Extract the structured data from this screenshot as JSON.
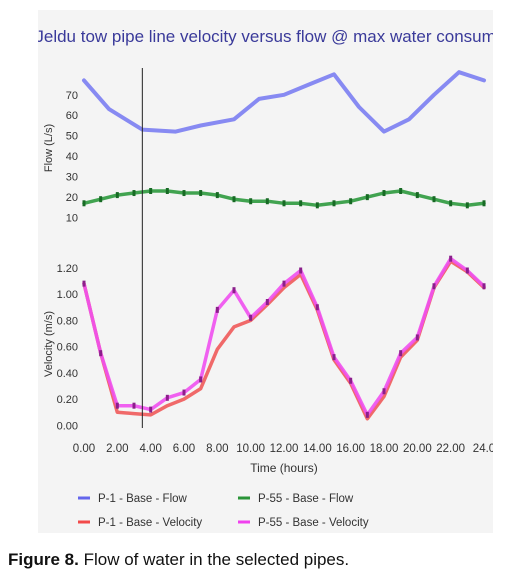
{
  "caption": {
    "label": "Figure 8.",
    "text": " Flow of water in the selected pipes."
  },
  "chart_data": {
    "title": "Jeldu tow pipe line velocity versus flow @ max water consumption",
    "xlabel": "Time (hours)",
    "x_ticks": [
      "0.00",
      "2.00",
      "4.00",
      "6.00",
      "8.00",
      "10.00",
      "12.00",
      "14.00",
      "16.00",
      "18.00",
      "20.00",
      "22.00",
      "24.0"
    ],
    "xlim": [
      0,
      24
    ],
    "cursor_x": 3.5,
    "grid": false,
    "legend_position": "bottom",
    "panels": [
      {
        "type": "line",
        "ylabel": "Flow (L/s)",
        "y_ticks": [
          "70",
          "60",
          "50",
          "40",
          "30",
          "20",
          "10"
        ],
        "ylim": [
          2,
          86
        ],
        "series": [
          {
            "name": "P-1 - Base - Flow",
            "color": "#7b7ef2",
            "x": [
              0,
              1.5,
              3.5,
              5.5,
              7,
              9,
              10.5,
              12,
              13.5,
              15,
              16.5,
              18,
              19.5,
              21,
              22.5,
              24
            ],
            "y": [
              77,
              63,
              53,
              52,
              55,
              58,
              68,
              70,
              75,
              80,
              64,
              52,
              58,
              70,
              81,
              77
            ]
          },
          {
            "name": "P-55 - Base - Flow",
            "color": "#2e9a3e",
            "markers": true,
            "x": [
              0,
              1,
              2,
              3,
              4,
              5,
              6,
              7,
              8,
              9,
              10,
              11,
              12,
              13,
              14,
              15,
              16,
              17,
              18,
              19,
              20,
              21,
              22,
              23,
              24
            ],
            "y": [
              17,
              19,
              21,
              22,
              23,
              23,
              22,
              22,
              21,
              19,
              18,
              18,
              17,
              17,
              16,
              17,
              18,
              20,
              22,
              23,
              21,
              19,
              17,
              16,
              17
            ]
          }
        ]
      },
      {
        "type": "line",
        "ylabel": "Velocity (m/s)",
        "y_ticks": [
          "1.20",
          "1.00",
          "0.80",
          "0.60",
          "0.40",
          "0.20",
          "0.00"
        ],
        "ylim": [
          -0.02,
          1.26
        ],
        "series": [
          {
            "name": "P-1 - Base - Velocity",
            "color": "#f05a5a",
            "x": [
              0,
              1,
              2,
              3,
              4,
              5,
              6,
              7,
              8,
              9,
              10,
              11,
              12,
              13,
              14,
              15,
              16,
              17,
              18,
              19,
              20,
              21,
              22,
              23,
              24
            ],
            "y": [
              1.08,
              0.55,
              0.1,
              0.09,
              0.08,
              0.15,
              0.2,
              0.28,
              0.58,
              0.75,
              0.8,
              0.92,
              1.05,
              1.15,
              0.88,
              0.5,
              0.32,
              0.05,
              0.22,
              0.52,
              0.65,
              1.05,
              1.25,
              1.17,
              1.05
            ]
          },
          {
            "name": "P-55 - Base - Velocity",
            "color": "#f050f0",
            "markers": true,
            "x": [
              0,
              1,
              2,
              3,
              4,
              5,
              6,
              7,
              8,
              9,
              10,
              11,
              12,
              13,
              14,
              15,
              16,
              17,
              18,
              19,
              20,
              21,
              22,
              23,
              24
            ],
            "y": [
              1.08,
              0.55,
              0.15,
              0.15,
              0.12,
              0.21,
              0.25,
              0.35,
              0.88,
              1.03,
              0.82,
              0.94,
              1.08,
              1.18,
              0.9,
              0.52,
              0.34,
              0.08,
              0.26,
              0.55,
              0.67,
              1.06,
              1.27,
              1.18,
              1.06
            ]
          }
        ]
      }
    ],
    "legend": [
      {
        "name": "P-1 - Base - Flow",
        "color": "#6466ec"
      },
      {
        "name": "P-55 - Base - Flow",
        "color": "#2a9438"
      },
      {
        "name": "P-1 - Base - Velocity",
        "color": "#f24a4a"
      },
      {
        "name": "P-55 - Base - Velocity",
        "color": "#f040ee"
      }
    ]
  }
}
